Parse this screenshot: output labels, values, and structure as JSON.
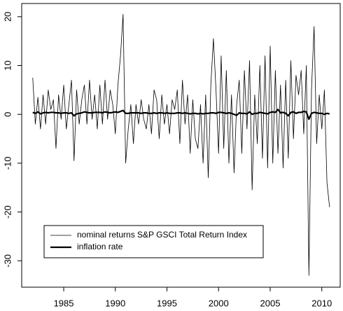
{
  "chart_data": {
    "type": "line",
    "x": [
      1982,
      1982.25,
      1982.5,
      1982.75,
      1983,
      1983.25,
      1983.5,
      1983.75,
      1984,
      1984.25,
      1984.5,
      1984.75,
      1985,
      1985.25,
      1985.5,
      1985.75,
      1986,
      1986.25,
      1986.5,
      1986.75,
      1987,
      1987.25,
      1987.5,
      1987.75,
      1988,
      1988.25,
      1988.5,
      1988.75,
      1989,
      1989.25,
      1989.5,
      1989.75,
      1990,
      1990.25,
      1990.5,
      1990.75,
      1991,
      1991.25,
      1991.5,
      1991.75,
      1992,
      1992.25,
      1992.5,
      1992.75,
      1993,
      1993.25,
      1993.5,
      1993.75,
      1994,
      1994.25,
      1994.5,
      1994.75,
      1995,
      1995.25,
      1995.5,
      1995.75,
      1996,
      1996.25,
      1996.5,
      1996.75,
      1997,
      1997.25,
      1997.5,
      1997.75,
      1998,
      1998.25,
      1998.5,
      1998.75,
      1999,
      1999.25,
      1999.5,
      1999.75,
      2000,
      2000.25,
      2000.5,
      2000.75,
      2001,
      2001.25,
      2001.5,
      2001.75,
      2002,
      2002.25,
      2002.5,
      2002.75,
      2003,
      2003.25,
      2003.5,
      2003.75,
      2004,
      2004.25,
      2004.5,
      2004.75,
      2005,
      2005.25,
      2005.5,
      2005.75,
      2006,
      2006.25,
      2006.5,
      2006.75,
      2007,
      2007.25,
      2007.5,
      2007.75,
      2008,
      2008.25,
      2008.5,
      2008.75,
      2009,
      2009.25,
      2009.5,
      2009.75,
      2010,
      2010.25,
      2010.5,
      2010.75
    ],
    "series": [
      {
        "name": "nominal returns S&P GSCI Total Return Index",
        "color": "#000000",
        "values": [
          7.5,
          -2,
          3.5,
          -3,
          4,
          -2,
          5,
          1,
          3,
          -7,
          4,
          -1,
          6,
          -3,
          2,
          7,
          -9.5,
          5,
          -2,
          3,
          6,
          -2,
          7,
          -1,
          4,
          -3,
          6,
          -2,
          7,
          -1,
          5,
          2,
          -4,
          6,
          12,
          20.5,
          -10,
          -3,
          2,
          -6,
          2,
          -2,
          3,
          -1,
          -3,
          2,
          -4,
          5,
          3,
          -5,
          4,
          -2,
          2,
          -4,
          3,
          1,
          5,
          -6,
          7,
          -2,
          4,
          -8,
          3,
          -5,
          -7,
          2,
          -10,
          4,
          -13,
          6,
          15.5,
          5,
          -8,
          12,
          -7,
          9,
          -10,
          4,
          -12,
          2,
          7,
          -8,
          9,
          -3,
          11,
          -15.5,
          4,
          -6,
          10,
          -9,
          12,
          -11,
          14,
          -10,
          9,
          -8,
          6,
          -11,
          7,
          -9,
          11,
          -5,
          8,
          4,
          9,
          -4,
          10,
          -33,
          5,
          18,
          -6,
          4,
          -3,
          5,
          -14,
          -19
        ]
      },
      {
        "name": "inflation rate",
        "color": "#000000",
        "values": [
          0.4,
          0.2,
          0.5,
          0.1,
          0.3,
          0.4,
          0.3,
          0.4,
          0.4,
          0.3,
          0.3,
          0.2,
          0.3,
          0.3,
          0.2,
          0.3,
          -0.3,
          0.1,
          0.2,
          0.3,
          0.5,
          0.4,
          0.3,
          0.3,
          0.4,
          0.4,
          0.4,
          0.3,
          0.5,
          0.4,
          0.3,
          0.4,
          0.5,
          0.4,
          0.6,
          0.8,
          0.2,
          0.2,
          0.3,
          0.3,
          0.3,
          0.3,
          0.2,
          0.3,
          0.3,
          0.2,
          0.2,
          0.3,
          0.2,
          0.3,
          0.3,
          0.2,
          0.3,
          0.2,
          0.2,
          0.2,
          0.3,
          0.3,
          0.2,
          0.3,
          0.2,
          0.1,
          0.2,
          0.2,
          0.1,
          0.2,
          0.1,
          0.2,
          0.2,
          0.3,
          0.3,
          0.2,
          0.4,
          0.4,
          0.3,
          0.2,
          0.3,
          0.2,
          0,
          -0.2,
          0.3,
          0.2,
          0.2,
          0.1,
          0.5,
          0,
          0.2,
          0.2,
          0.4,
          0.3,
          0.2,
          0.1,
          0.4,
          0.5,
          0.4,
          1,
          0.3,
          0.4,
          0.2,
          -0.3,
          0.4,
          0.5,
          0.2,
          0.4,
          0.4,
          0.6,
          0.5,
          -1,
          0.2,
          0.4,
          0.3,
          0.2,
          0.2,
          0,
          0.2,
          0.1
        ]
      }
    ],
    "xlim": [
      1980.93,
      2011.78
    ],
    "xticks": [
      1985,
      1990,
      1995,
      2000,
      2005,
      2010
    ],
    "ylim": [
      -35.4,
      22.7
    ],
    "yticks": [
      -30,
      -20,
      -10,
      0,
      10,
      20
    ]
  }
}
